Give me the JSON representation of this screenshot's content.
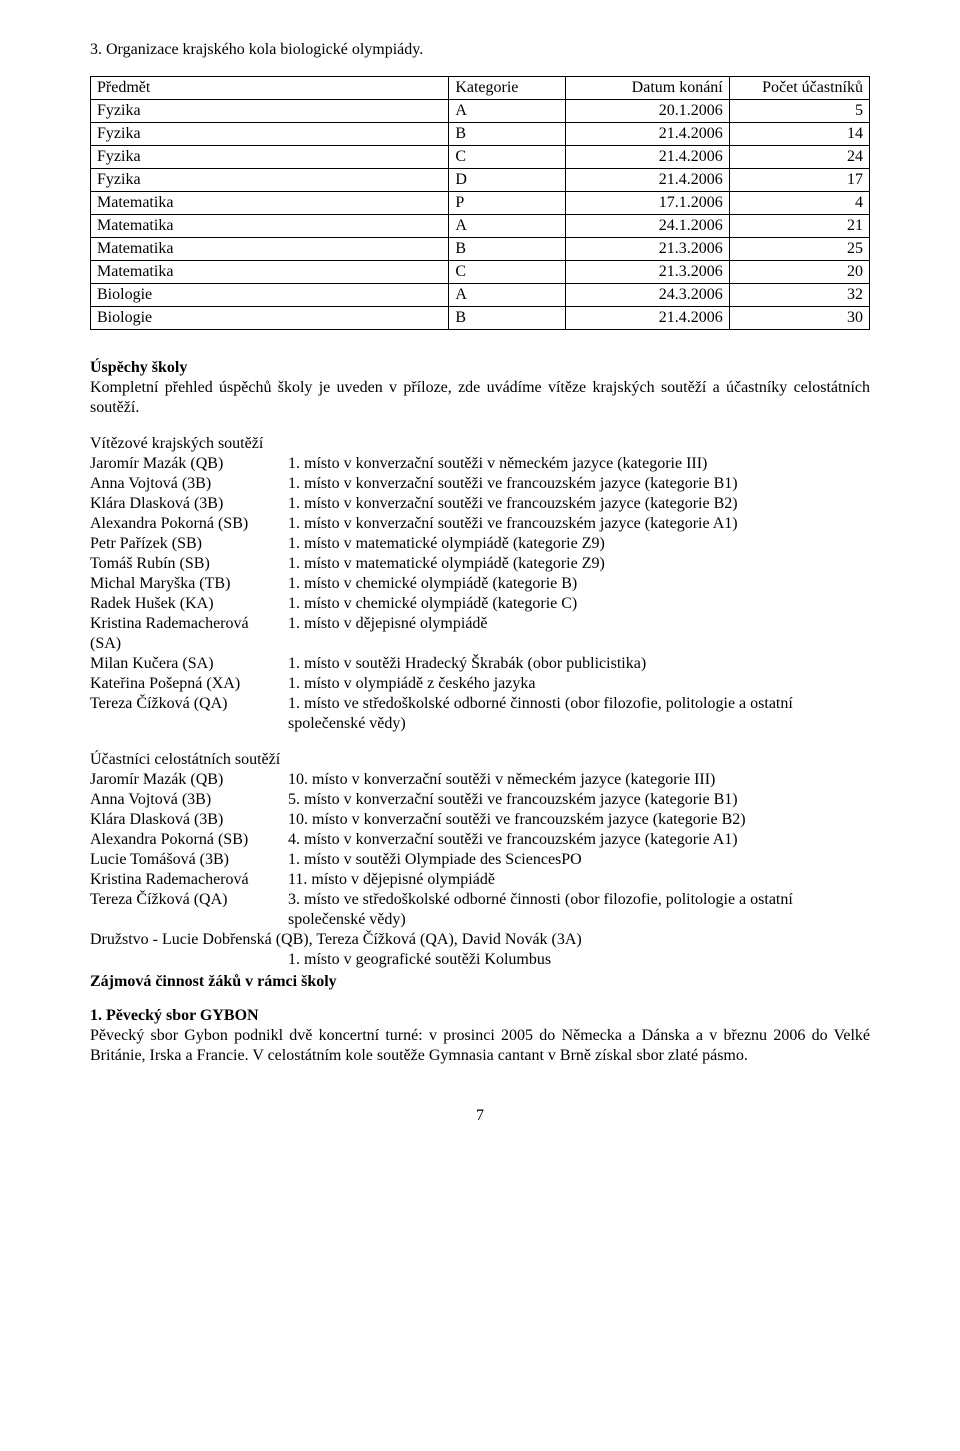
{
  "section3_title": "3. Organizace krajského kola biologické olympiády.",
  "table": {
    "columns": [
      "Předmět",
      "Kategorie",
      "Datum konání",
      "Počet účastníků"
    ],
    "rows": [
      [
        "Fyzika",
        "A",
        "20.1.2006",
        "5"
      ],
      [
        "Fyzika",
        "B",
        "21.4.2006",
        "14"
      ],
      [
        "Fyzika",
        "C",
        "21.4.2006",
        "24"
      ],
      [
        "Fyzika",
        "D",
        "21.4.2006",
        "17"
      ],
      [
        "Matematika",
        "P",
        "17.1.2006",
        "4"
      ],
      [
        "Matematika",
        "A",
        "24.1.2006",
        "21"
      ],
      [
        "Matematika",
        "B",
        "21.3.2006",
        "25"
      ],
      [
        "Matematika",
        "C",
        "21.3.2006",
        "20"
      ],
      [
        "Biologie",
        "A",
        "24.3.2006",
        "32"
      ],
      [
        "Biologie",
        "B",
        "21.4.2006",
        "30"
      ]
    ],
    "col_align": [
      "left",
      "left",
      "right",
      "right"
    ]
  },
  "uspechy_heading": "Úspěchy školy",
  "uspechy_text": "Kompletní přehled úspěchů školy je uveden v příloze, zde uvádíme vítěze krajských soutěží a účastníky celostátních soutěží.",
  "vitezove_heading": "Vítězové krajských soutěží",
  "vitezove": [
    {
      "name": "Jaromír Mazák (QB)",
      "res": "1. místo v konverzační soutěži v německém jazyce (kategorie III)"
    },
    {
      "name": "Anna Vojtová (3B)",
      "res": "1. místo v konverzační soutěži ve francouzském jazyce (kategorie B1)"
    },
    {
      "name": "Klára Dlasková (3B)",
      "res": "1. místo v konverzační soutěži ve francouzském jazyce (kategorie B2)"
    },
    {
      "name": "Alexandra Pokorná (SB)",
      "res": "1. místo v konverzační soutěži ve francouzském jazyce (kategorie A1)"
    },
    {
      "name": "Petr Pařízek (SB)",
      "res": "1. místo v matematické olympiádě (kategorie Z9)"
    },
    {
      "name": "Tomáš Rubín (SB)",
      "res": "1. místo v matematické olympiádě  (kategorie Z9)"
    },
    {
      "name": "Michal Maryška (TB)",
      "res": "1. místo v chemické olympiádě  (kategorie B)"
    },
    {
      "name": "Radek Hušek (KA)",
      "res": "1. místo v chemické olympiádě  (kategorie C)"
    },
    {
      "name": "Kristina Rademacherová (SA)",
      "res": "1. místo v dějepisné olympiádě"
    },
    {
      "name": "Milan Kučera (SA)",
      "res": "1. místo v soutěži Hradecký Škrabák (obor publicistika)"
    },
    {
      "name": "Kateřina Pošepná (XA)",
      "res": "1. místo v olympiádě z českého jazyka"
    },
    {
      "name": "Tereza Čížková (QA)",
      "res": "1. místo ve středoškolské odborné činnosti (obor filozofie, politologie a ostatní společenské vědy)"
    }
  ],
  "ucastnici_heading": "Účastníci celostátních soutěží",
  "ucastnici": [
    {
      "name": "Jaromír Mazák (QB)",
      "res": "10. místo v konverzační soutěži v německém jazyce (kategorie III)"
    },
    {
      "name": "Anna Vojtová (3B)",
      "res": "5. místo v konverzační soutěži ve francouzském jazyce (kategorie B1)"
    },
    {
      "name": "Klára Dlasková (3B)",
      "res": "10. místo v konverzační soutěži ve francouzském jazyce (kategorie B2)"
    },
    {
      "name": "Alexandra Pokorná (SB)",
      "res": "4. místo v konverzační soutěži ve francouzském jazyce (kategorie A1)"
    },
    {
      "name": "Lucie Tomášová (3B)",
      "res": "1. místo v soutěži Olympiade des SciencesPO"
    },
    {
      "name": "Kristina Rademacherová",
      "res": "11. místo v dějepisné olympiádě"
    },
    {
      "name": "Tereza Čížková (QA)",
      "res": "3. místo ve středoškolské odborné činnosti (obor filozofie, politologie a ostatní společenské vědy)"
    }
  ],
  "team_line1": "Družstvo - Lucie Dobřenská (QB), Tereza Čížková (QA), David Novák (3A)",
  "team_line2": "1. místo v geografické soutěži Kolumbus",
  "zajmova_heading": "Zájmová činnost žáků v rámci školy",
  "gybon_heading": "1. Pěvecký sbor GYBON",
  "gybon_text": "Pěvecký sbor Gybon podnikl dvě koncertní turné: v prosinci 2005 do Německa a Dánska a v březnu 2006 do Velké Británie, Irska a Francie. V celostátním kole soutěže Gymnasia cantant v Brně  získal sbor zlaté pásmo.",
  "page_number": "7"
}
